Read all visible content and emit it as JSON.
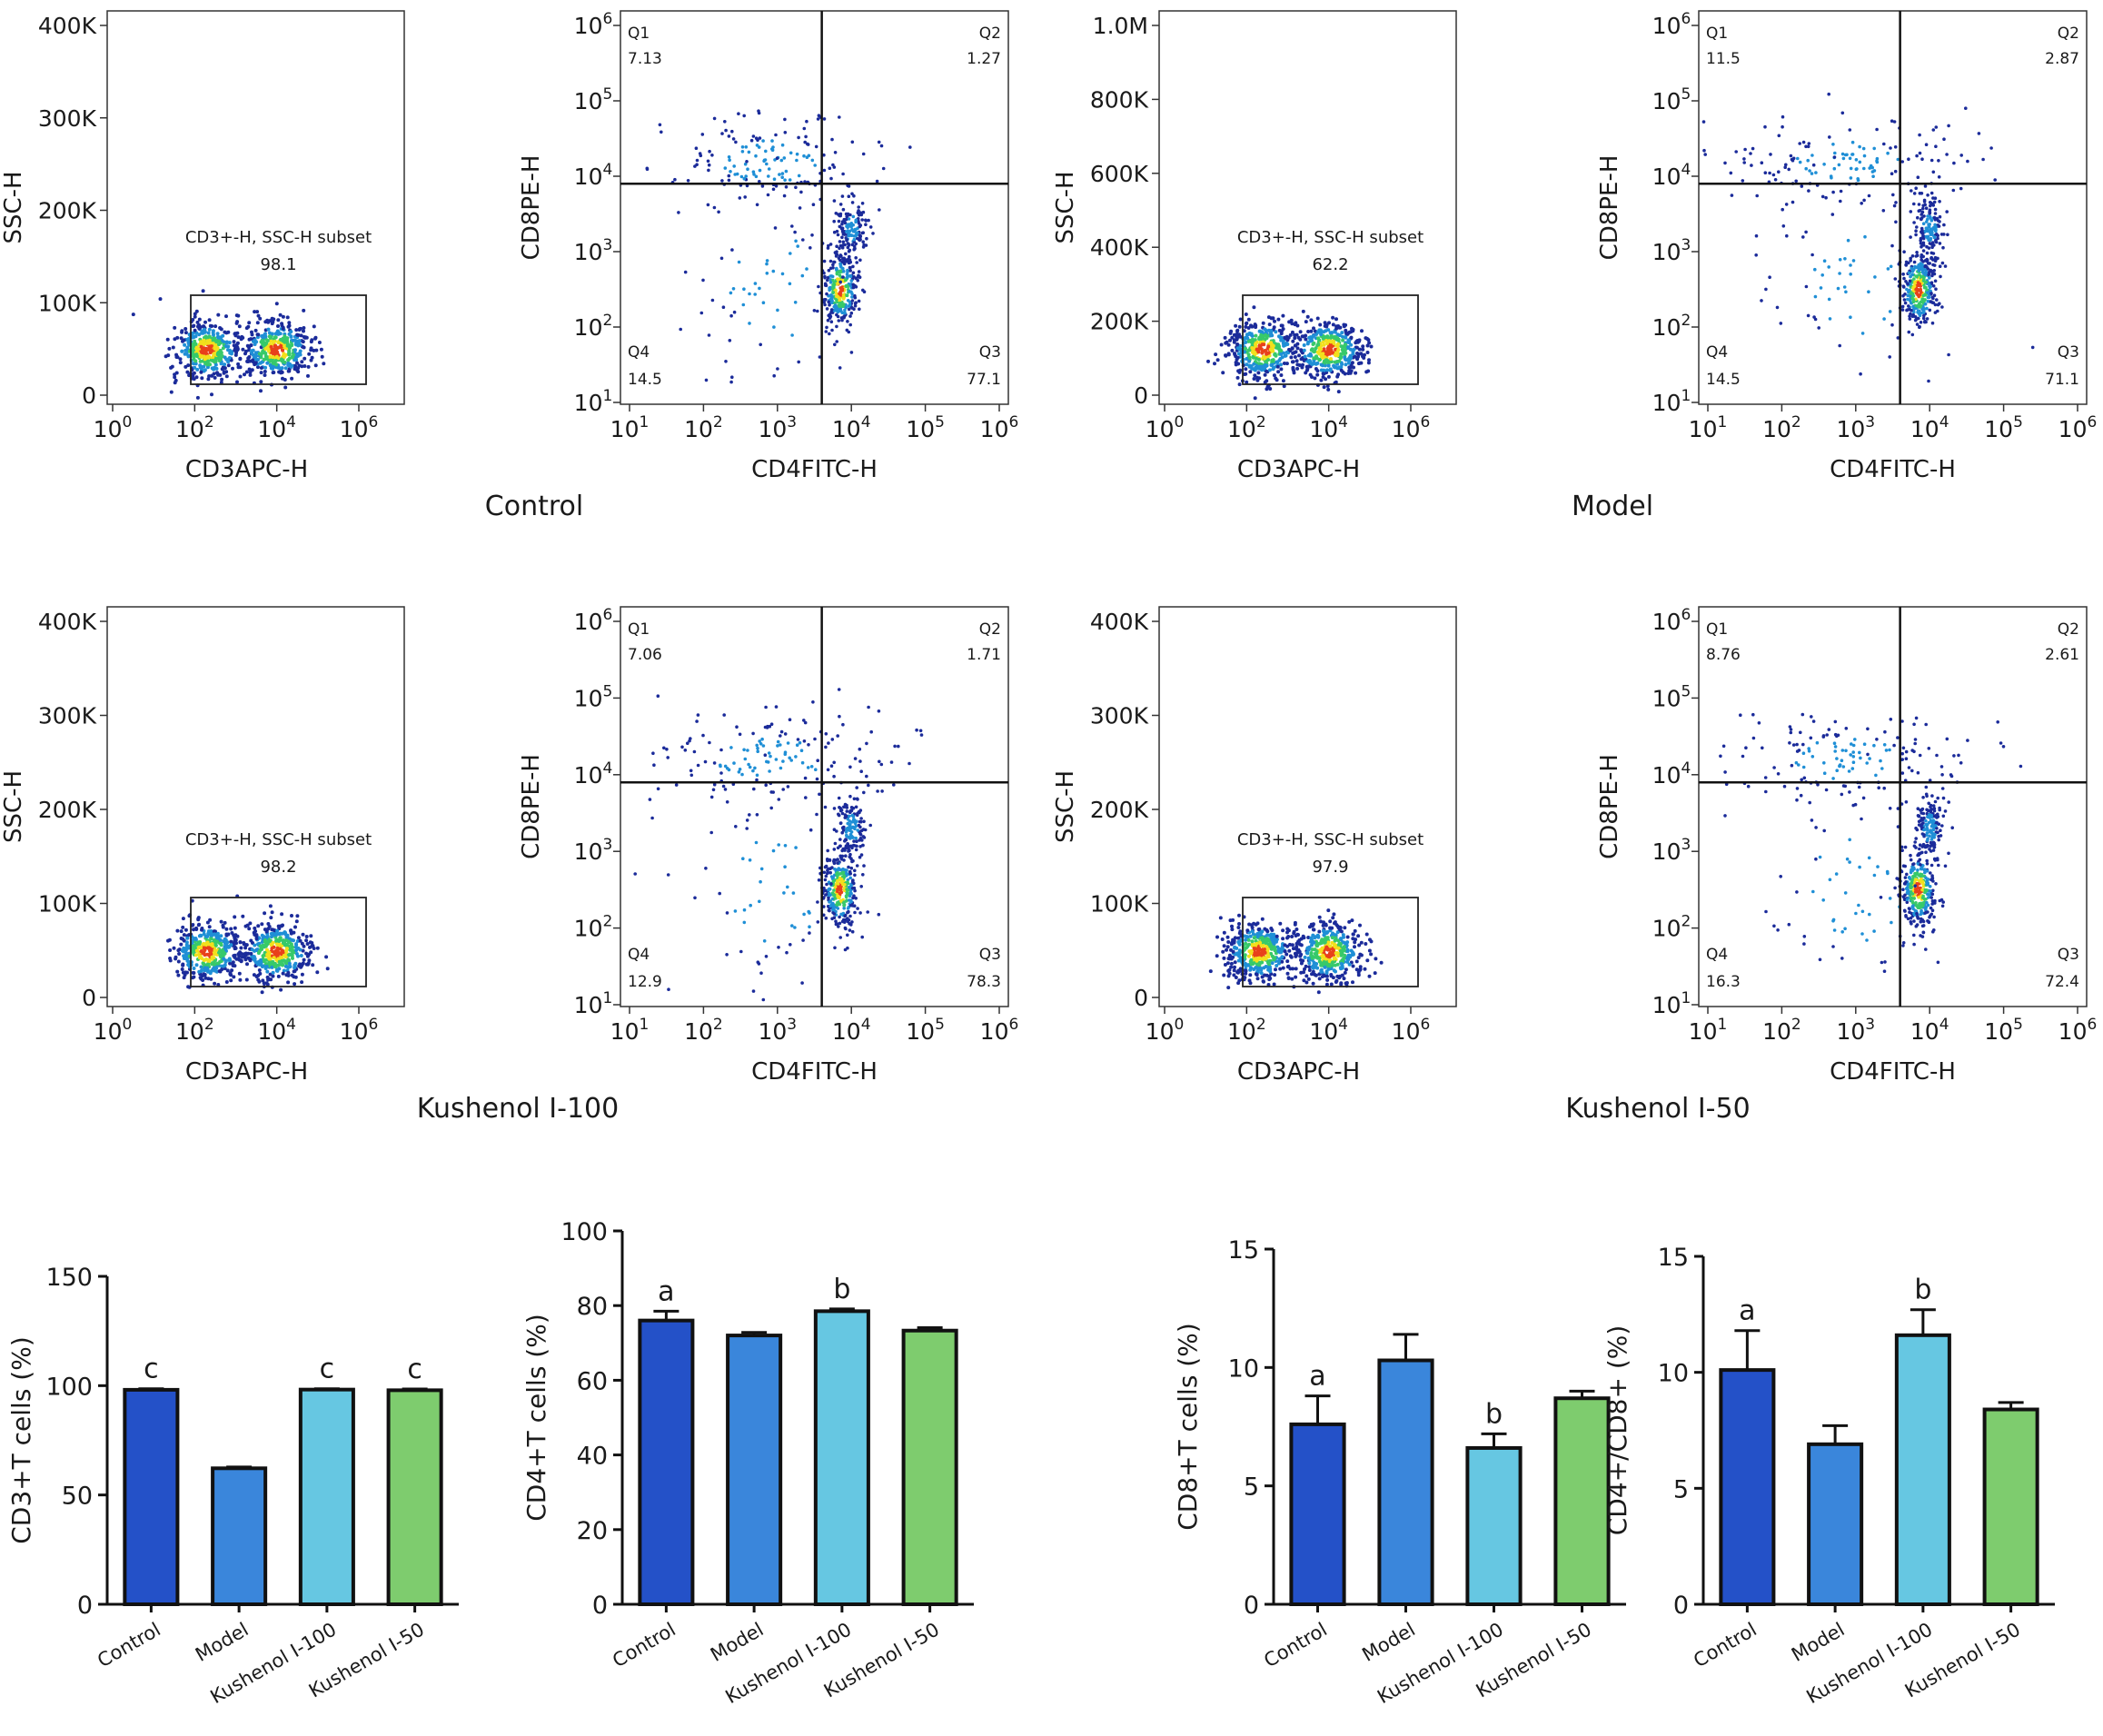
{
  "groups": [
    {
      "label": "Control",
      "scatter_ssc": {
        "y_ticks": [
          "400K",
          "300K",
          "200K",
          "100K",
          "0"
        ],
        "x_ticks": [
          "0",
          "2",
          "4",
          "6"
        ],
        "xlabel": "CD3APC-H",
        "ylabel": "SSC-H",
        "gate_label": "CD3+-H, SSC-H subset",
        "gate_value": "98.1",
        "pop_centers_log10": [
          2.3,
          4.0
        ]
      },
      "scatter_cd48": {
        "y_ticks": [
          "6",
          "5",
          "4",
          "3",
          "2",
          "1"
        ],
        "x_ticks": [
          "1",
          "2",
          "3",
          "4",
          "5",
          "6"
        ],
        "xlabel": "CD4FITC-H",
        "ylabel": "CD8PE-H",
        "quadrants": {
          "Q1": "7.13",
          "Q2": "1.27",
          "Q3": "77.1",
          "Q4": "14.5"
        }
      }
    },
    {
      "label": "Model",
      "scatter_ssc": {
        "y_ticks": [
          "1.0M",
          "800K",
          "600K",
          "400K",
          "200K",
          "0"
        ],
        "x_ticks": [
          "0",
          "2",
          "4",
          "6"
        ],
        "xlabel": "CD3APC-H",
        "ylabel": "SSC-H",
        "gate_label": "CD3+-H, SSC-H subset",
        "gate_value": "62.2",
        "pop_centers_log10": [
          2.4,
          4.0
        ]
      },
      "scatter_cd48": {
        "y_ticks": [
          "6",
          "5",
          "4",
          "3",
          "2",
          "1"
        ],
        "x_ticks": [
          "1",
          "2",
          "3",
          "4",
          "5",
          "6"
        ],
        "xlabel": "CD4FITC-H",
        "ylabel": "CD8PE-H",
        "quadrants": {
          "Q1": "11.5",
          "Q2": "2.87",
          "Q3": "71.1",
          "Q4": "14.5"
        }
      }
    },
    {
      "label": "Kushenol I-100",
      "scatter_ssc": {
        "y_ticks": [
          "400K",
          "300K",
          "200K",
          "100K",
          "0"
        ],
        "x_ticks": [
          "0",
          "2",
          "4",
          "6"
        ],
        "xlabel": "CD3APC-H",
        "ylabel": "SSC-H",
        "gate_label": "CD3+-H, SSC-H subset",
        "gate_value": "98.2",
        "pop_centers_log10": [
          2.3,
          4.0
        ]
      },
      "scatter_cd48": {
        "y_ticks": [
          "6",
          "5",
          "4",
          "3",
          "2",
          "1"
        ],
        "x_ticks": [
          "1",
          "2",
          "3",
          "4",
          "5",
          "6"
        ],
        "xlabel": "CD4FITC-H",
        "ylabel": "CD8PE-H",
        "quadrants": {
          "Q1": "7.06",
          "Q2": "1.71",
          "Q3": "78.3",
          "Q4": "12.9"
        }
      }
    },
    {
      "label": "Kushenol I-50",
      "scatter_ssc": {
        "y_ticks": [
          "400K",
          "300K",
          "200K",
          "100K",
          "0"
        ],
        "x_ticks": [
          "0",
          "2",
          "4",
          "6"
        ],
        "xlabel": "CD3APC-H",
        "ylabel": "SSC-H",
        "gate_label": "CD3+-H, SSC-H subset",
        "gate_value": "97.9",
        "pop_centers_log10": [
          2.3,
          4.0
        ]
      },
      "scatter_cd48": {
        "y_ticks": [
          "6",
          "5",
          "4",
          "3",
          "2",
          "1"
        ],
        "x_ticks": [
          "1",
          "2",
          "3",
          "4",
          "5",
          "6"
        ],
        "xlabel": "CD4FITC-H",
        "ylabel": "CD8PE-H",
        "quadrants": {
          "Q1": "8.76",
          "Q2": "2.61",
          "Q3": "72.4",
          "Q4": "16.3"
        }
      }
    }
  ],
  "colors": {
    "Control": "#2451C8",
    "Model": "#3A86DB",
    "Kushenol I-100": "#66C7E2",
    "Kushenol I-50": "#7ECC6E"
  },
  "chart_data": [
    {
      "type": "bar",
      "ylabel": "CD3+T cells (%)",
      "categories": [
        "Control",
        "Model",
        "Kushenol I-100",
        "Kushenol I-50"
      ],
      "values": [
        98.1,
        62.2,
        98.2,
        97.9
      ],
      "errors": [
        0.5,
        0.6,
        0.4,
        0.6
      ],
      "labels": [
        "c",
        "",
        "c",
        "c"
      ],
      "ylim": [
        0,
        150
      ],
      "yticks": [
        "0",
        "50",
        "100",
        "150"
      ]
    },
    {
      "type": "bar",
      "ylabel": "CD4+T cells (%)",
      "categories": [
        "Control",
        "Model",
        "Kushenol I-100",
        "Kushenol I-50"
      ],
      "values": [
        76.0,
        72.0,
        78.5,
        73.3
      ],
      "errors": [
        2.5,
        0.8,
        0.6,
        0.8
      ],
      "labels": [
        "a",
        "",
        "b",
        ""
      ],
      "ylim": [
        0,
        100
      ],
      "yticks": [
        "0",
        "20",
        "40",
        "60",
        "80",
        "100"
      ]
    },
    {
      "type": "bar",
      "ylabel": "CD8+T cells (%)",
      "categories": [
        "Control",
        "Model",
        "Kushenol I-100",
        "Kushenol I-50"
      ],
      "values": [
        7.6,
        10.3,
        6.6,
        8.7
      ],
      "errors": [
        1.2,
        1.1,
        0.6,
        0.3
      ],
      "labels": [
        "a",
        "",
        "b",
        ""
      ],
      "ylim": [
        0,
        15
      ],
      "yticks": [
        "0",
        "5",
        "10",
        "15"
      ]
    },
    {
      "type": "bar",
      "ylabel": "CD4+/CD8+ (%)",
      "categories": [
        "Control",
        "Model",
        "Kushenol I-100",
        "Kushenol I-50"
      ],
      "values": [
        10.1,
        6.9,
        11.6,
        8.4
      ],
      "errors": [
        1.7,
        0.8,
        1.1,
        0.3
      ],
      "labels": [
        "a",
        "",
        "b",
        ""
      ],
      "ylim": [
        0,
        15
      ],
      "yticks": [
        "0",
        "5",
        "10",
        "15"
      ]
    }
  ]
}
